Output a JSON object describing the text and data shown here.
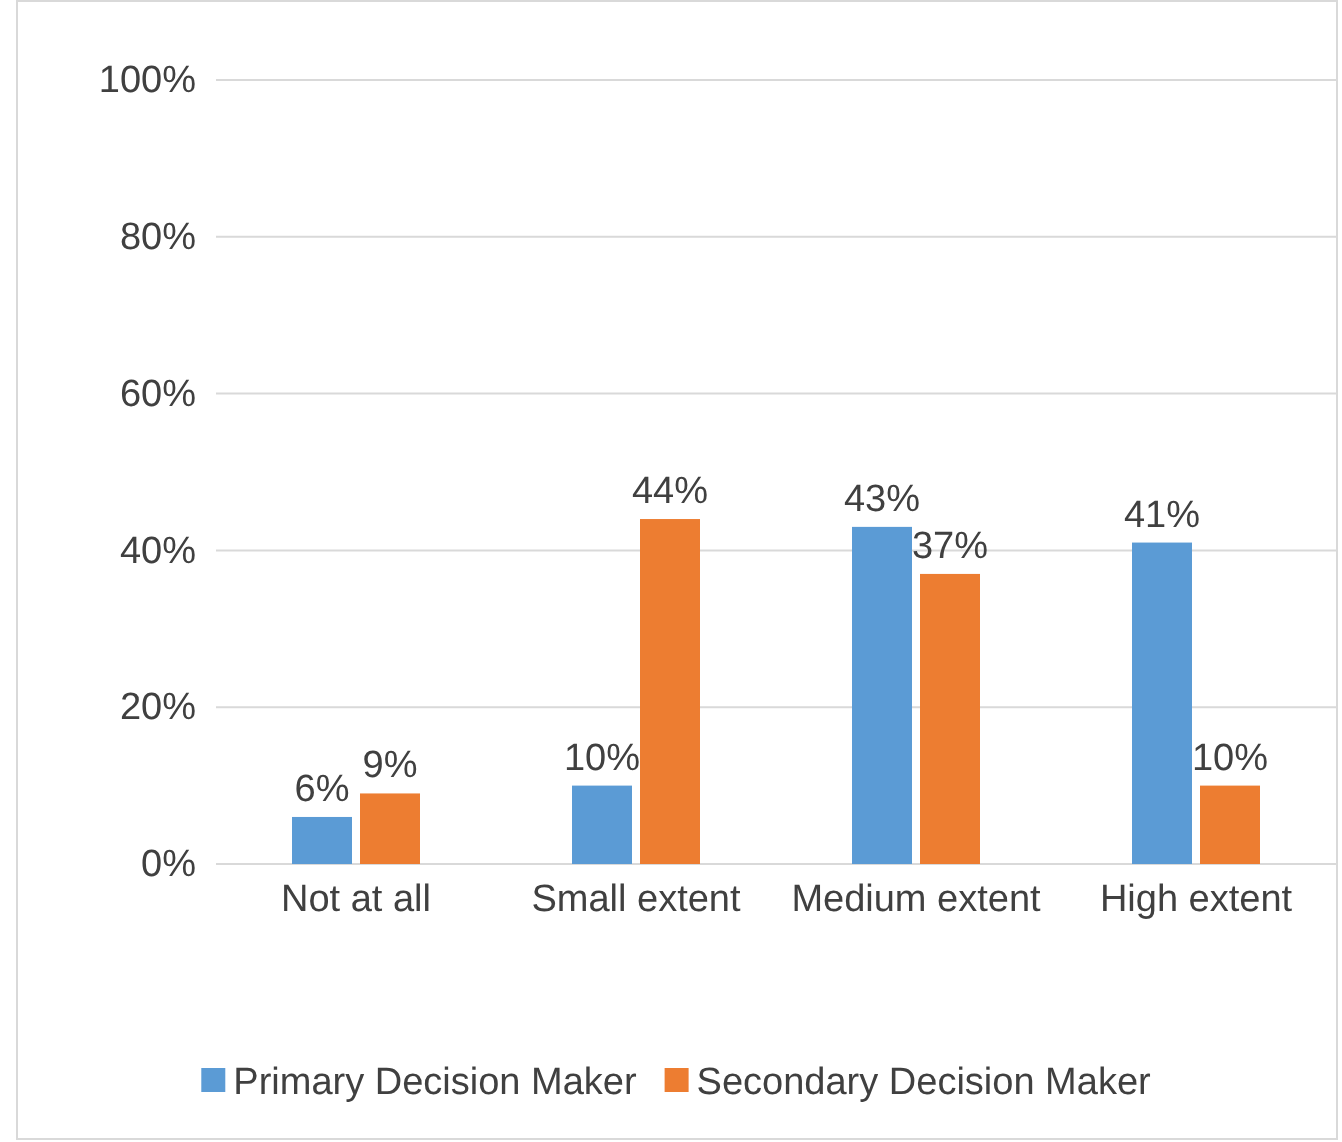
{
  "chart_data": {
    "type": "bar",
    "categories": [
      "Not at all",
      "Small extent",
      "Medium extent",
      "High extent"
    ],
    "series": [
      {
        "name": "Primary Decision Maker",
        "color": "#5b9bd5",
        "values": [
          6,
          10,
          43,
          41
        ],
        "value_labels": [
          "6%",
          "10%",
          "43%",
          "41%"
        ]
      },
      {
        "name": "Secondary Decision Maker",
        "color": "#ed7d31",
        "values": [
          9,
          44,
          37,
          10
        ],
        "value_labels": [
          "9%",
          "44%",
          "37%",
          "10%"
        ]
      }
    ],
    "ylim": [
      0,
      100
    ],
    "yticks": [
      {
        "value": 0,
        "label": "0%"
      },
      {
        "value": 20,
        "label": "20%"
      },
      {
        "value": 40,
        "label": "40%"
      },
      {
        "value": 60,
        "label": "60%"
      },
      {
        "value": 80,
        "label": "80%"
      },
      {
        "value": 100,
        "label": "100%"
      }
    ],
    "grid": "y",
    "legend": "bottom"
  }
}
